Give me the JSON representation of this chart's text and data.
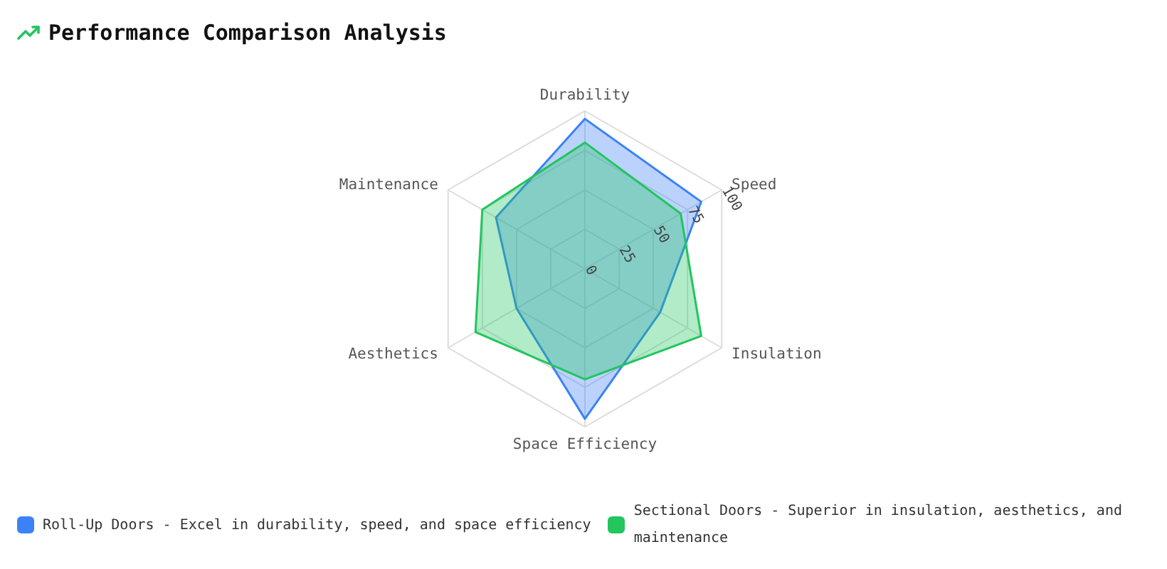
{
  "chart_data": {
    "type": "radar",
    "title": "Performance Comparison Analysis",
    "categories": [
      "Durability",
      "Speed",
      "Insulation",
      "Space Efficiency",
      "Aesthetics",
      "Maintenance"
    ],
    "series": [
      {
        "name": "Roll-Up Doors - Excel in durability, speed, and space efficiency",
        "color": "#3b82f6",
        "values": [
          95,
          85,
          55,
          95,
          50,
          65
        ]
      },
      {
        "name": "Sectional Doors - Superior in insulation, aesthetics, and maintenance",
        "color": "#22c55e",
        "values": [
          80,
          70,
          85,
          70,
          80,
          75
        ]
      }
    ],
    "ylim": [
      0,
      100
    ],
    "yticks": [
      0,
      25,
      50,
      75,
      100
    ],
    "legend": "bottom"
  }
}
